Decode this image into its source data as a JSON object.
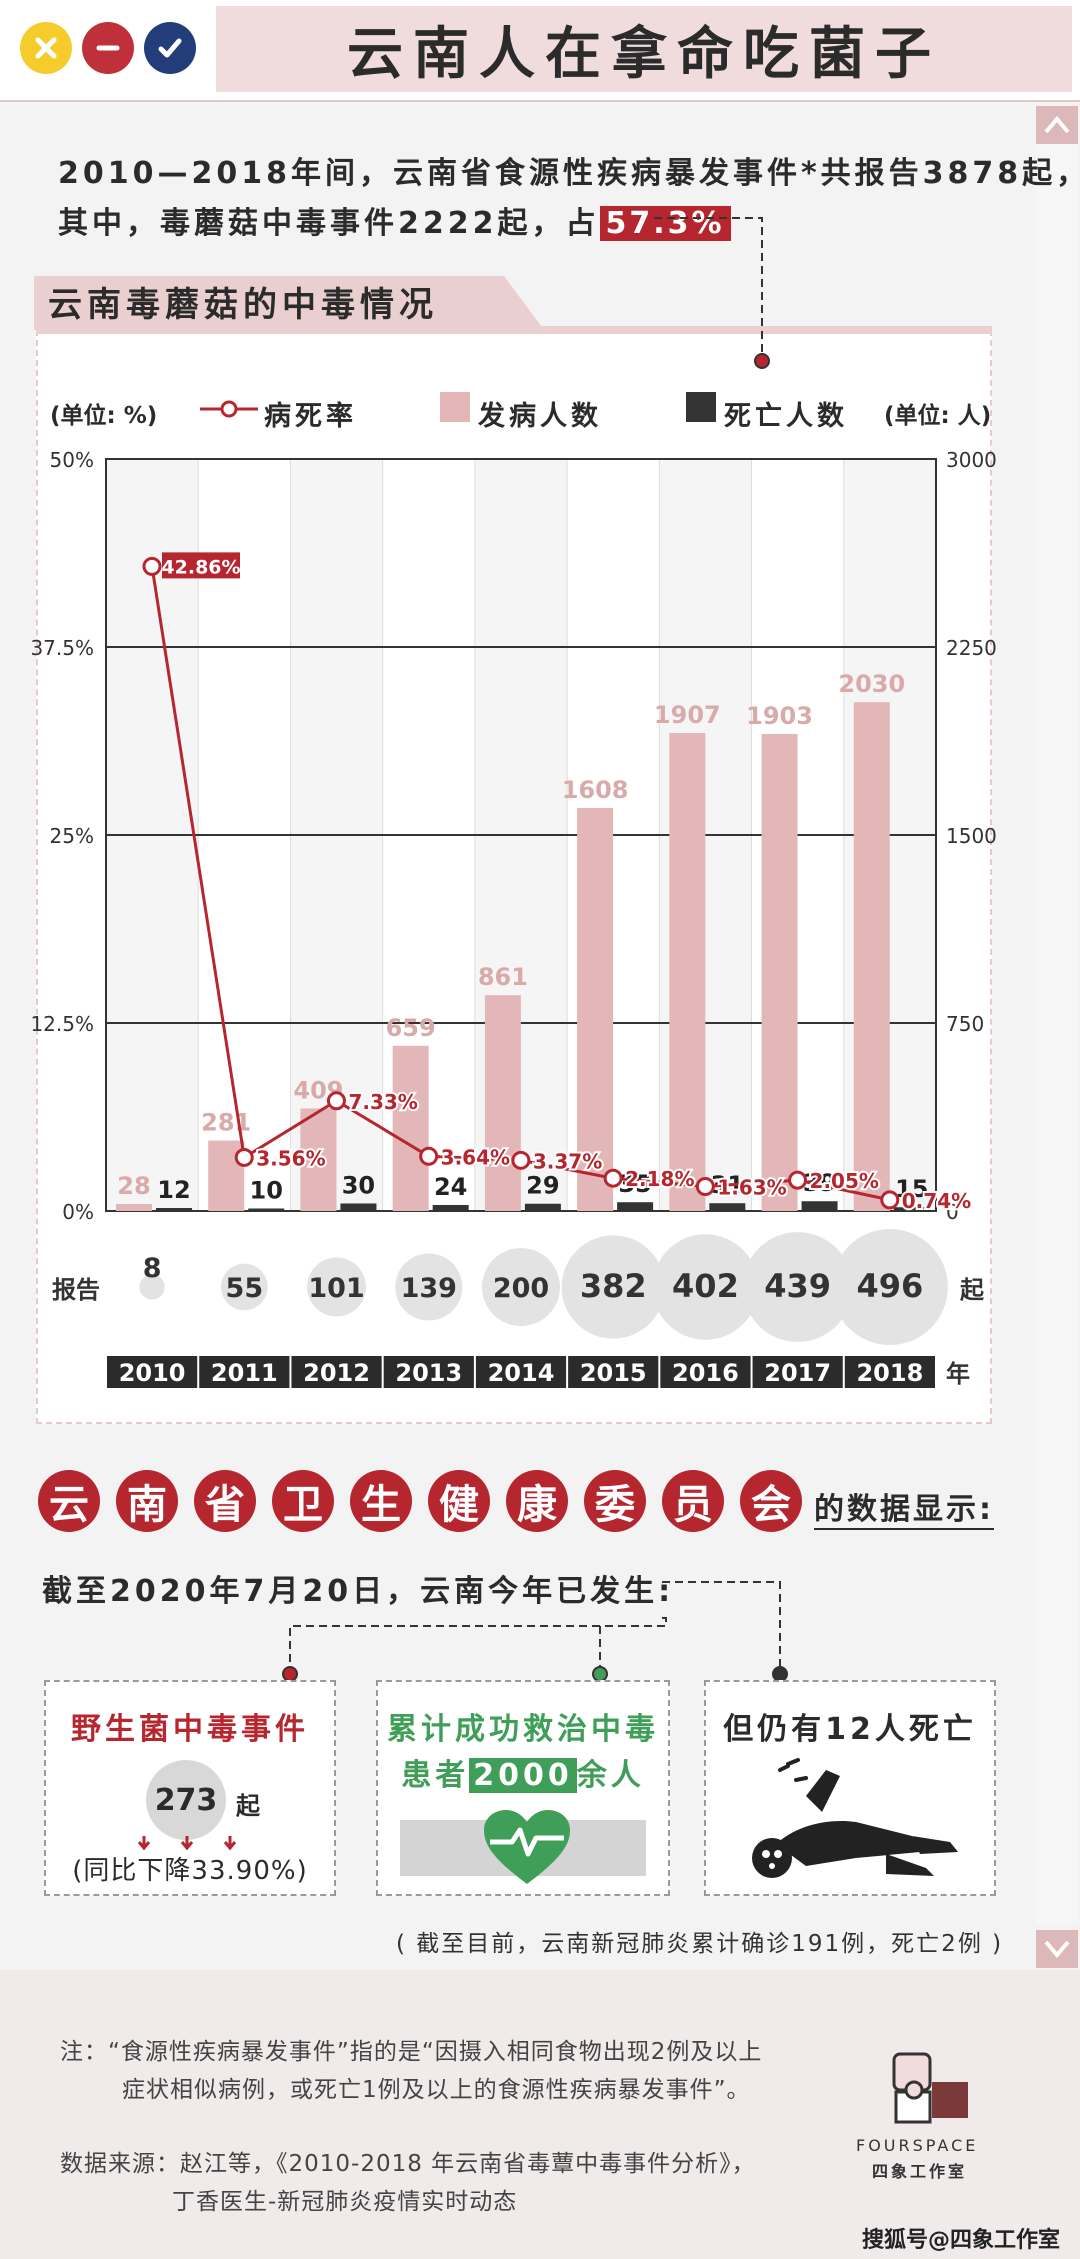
{
  "header": {
    "title": "云南人在拿命吃菌子"
  },
  "intro": {
    "line1": "2010—2018年间，云南省食源性疾病暴发事件*共报告3878起，",
    "line2_pre": "其中，毒蘑菇中毒事件2222起，占",
    "line2_highlight": "57.3%"
  },
  "chart_section": {
    "title": "云南毒蘑菇的中毒情况"
  },
  "legend": {
    "left_unit": "(单位: %)",
    "rate": "病死率",
    "cases": "发病人数",
    "deaths": "死亡人数",
    "right_unit": "(单位: 人)"
  },
  "colors": {
    "accent": "#b5262f",
    "cases_bar": "#e3b7b7",
    "deaths_bar": "#333333",
    "report_bubble": "#e3e3e3",
    "green": "#3f9e57"
  },
  "chart_data": {
    "type": "bar",
    "categories": [
      "2010",
      "2011",
      "2012",
      "2013",
      "2014",
      "2015",
      "2016",
      "2017",
      "2018"
    ],
    "series": [
      {
        "name": "发病人数",
        "values": [
          28,
          281,
          409,
          659,
          861,
          1608,
          1907,
          1903,
          2030
        ],
        "axis": "right"
      },
      {
        "name": "死亡人数",
        "values": [
          12,
          10,
          30,
          24,
          29,
          35,
          31,
          39,
          15
        ],
        "axis": "right"
      },
      {
        "name": "病死率",
        "type": "line",
        "values": [
          42.86,
          3.56,
          7.33,
          3.64,
          3.37,
          2.18,
          1.63,
          2.05,
          0.74
        ],
        "labels": [
          "42.86%",
          "3.56%",
          "7.33%",
          "3.64%",
          "3.37%",
          "2.18%",
          "1.63%",
          "2.05%",
          "0.74%"
        ],
        "axis": "left"
      }
    ],
    "left_ticks": [
      "50%",
      "37.5%",
      "25%",
      "12.5%",
      "0%"
    ],
    "left_range": [
      0,
      50
    ],
    "right_ticks": [
      "3000",
      "2250",
      "1500",
      "750",
      "0"
    ],
    "right_range": [
      0,
      3000
    ],
    "reports": {
      "label": "报告",
      "unit": "起",
      "values": [
        8,
        55,
        101,
        139,
        200,
        382,
        402,
        439,
        496
      ]
    },
    "year_unit": "年",
    "grid": true
  },
  "committee": {
    "chars": [
      "云",
      "南",
      "省",
      "卫",
      "生",
      "健",
      "康",
      "委",
      "员",
      "会"
    ],
    "suffix": "的数据显示:"
  },
  "as_of": "截至2020年7月20日，云南今年已发生:",
  "cards": {
    "wild": {
      "title": "野生菌中毒事件",
      "count": "273",
      "count_unit": "起",
      "change": "(同比下降33.90%)"
    },
    "rescued": {
      "line1": "累计成功救治中毒",
      "line2_pre": "患者",
      "line2_highlight": "2000",
      "line2_post": "余人"
    },
    "deaths": {
      "title": "但仍有12人死亡"
    }
  },
  "covid_note": "( 截至目前，云南新冠肺炎累计确诊191例，死亡2例 )",
  "footer": {
    "note_line1": "注：“食源性疾病暴发事件”指的是“因摄入相同食物出现2例及以上",
    "note_line2": "症状相似病例，或死亡1例及以上的食源性疾病暴发事件”。",
    "source_line1": "数据来源：赵江等，《2010-2018 年云南省毒蕈中毒事件分析》，",
    "source_line2": "丁香医生-新冠肺炎疫情实时动态",
    "logo_en": "FOURSPACE",
    "logo_cn": "四象工作室",
    "watermark": "搜狐号@四象工作室"
  }
}
